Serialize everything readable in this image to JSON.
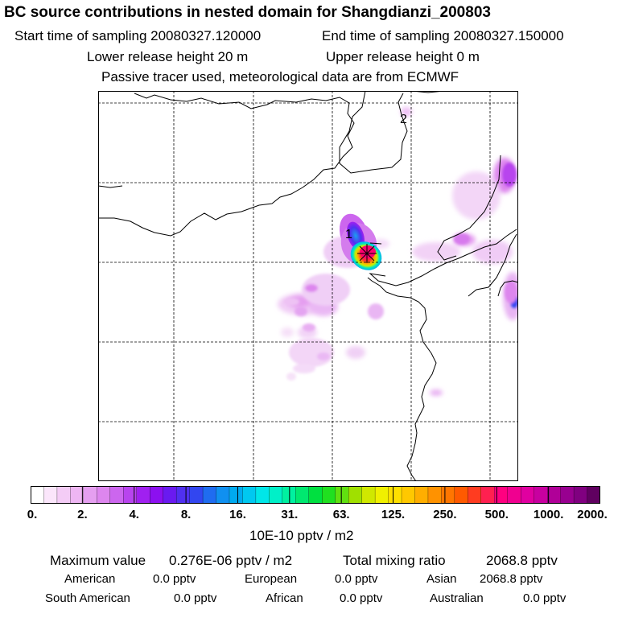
{
  "header": {
    "title": "BC  source contributions in nested domain for Shangdianzi_200803",
    "start": "Start time of sampling 20080327.120000",
    "end": "End time of sampling 20080327.150000",
    "lower": "Lower release height   20 m",
    "upper": "Upper release height    0 m",
    "note": "Passive tracer used, meteorological data are from ECMWF"
  },
  "map": {
    "markers": [
      "1",
      "2"
    ]
  },
  "colorbar": {
    "ticks": [
      "0.",
      "2.",
      "4.",
      "8.",
      "16.",
      "31.",
      "63.",
      "125.",
      "250.",
      "500.",
      "1000.",
      "2000."
    ],
    "colors": [
      "#ffffff",
      "#fbe6fb",
      "#f4ccf6",
      "#eeb6f3",
      "#e59ff0",
      "#dd86ee",
      "#cc66ee",
      "#b844ee",
      "#a020f0",
      "#8c10f0",
      "#6a1af0",
      "#5030f0",
      "#3246f0",
      "#1f6cf0",
      "#1090f0",
      "#00aaf0",
      "#00c8f0",
      "#00e6e8",
      "#00f0c8",
      "#00f0a0",
      "#00e870",
      "#00e040",
      "#20e020",
      "#60e010",
      "#a0e000",
      "#d0e800",
      "#f0f000",
      "#ffe000",
      "#ffc800",
      "#ffae00",
      "#ff9200",
      "#ff7600",
      "#ff5a00",
      "#ff3c20",
      "#ff2050",
      "#ff0080",
      "#f00090",
      "#e000a0",
      "#c800a0",
      "#b00098",
      "#980090",
      "#800080",
      "#600060"
    ],
    "unit": "10E-10 pptv / m2"
  },
  "stats": {
    "max_label": "Maximum value",
    "max_value": "0.276E-06 pptv / m2",
    "total_label": "Total mixing ratio",
    "total_value": "2068.8 pptv",
    "regions": [
      {
        "name": "American",
        "value": "0.0 pptv"
      },
      {
        "name": "European",
        "value": "0.0 pptv"
      },
      {
        "name": "Asian",
        "value": "2068.8 pptv"
      },
      {
        "name": "South American",
        "value": "0.0 pptv"
      },
      {
        "name": "African",
        "value": "0.0 pptv"
      },
      {
        "name": "Australian",
        "value": "0.0 pptv"
      }
    ]
  }
}
